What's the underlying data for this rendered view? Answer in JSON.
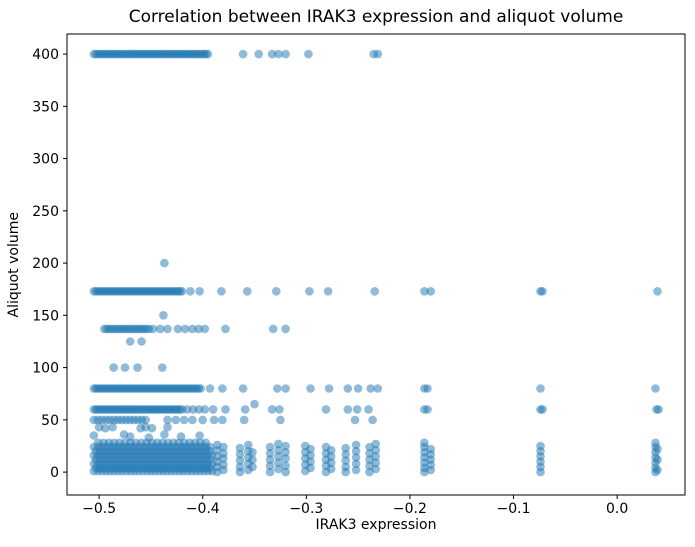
{
  "chart_data": {
    "type": "scatter",
    "title": "Correlation between IRAK3 expression and aliquot volume",
    "xlabel": "IRAK3 expression",
    "ylabel": "Aliquot volume",
    "xlim": [
      -0.531,
      0.0655
    ],
    "ylim": [
      -21.9,
      419.2
    ],
    "xtick_values": [
      -0.5,
      -0.4,
      -0.3,
      -0.2,
      -0.1,
      0.0
    ],
    "xtick_labels": [
      "−0.5",
      "−0.4",
      "−0.3",
      "−0.2",
      "−0.1",
      "0.0"
    ],
    "ytick_values": [
      0,
      50,
      100,
      150,
      200,
      250,
      300,
      350,
      400
    ],
    "ytick_labels": [
      "0",
      "50",
      "100",
      "150",
      "200",
      "250",
      "300",
      "350",
      "400"
    ],
    "grid": false,
    "legend": null,
    "marker": {
      "color": "#1f77b4",
      "opacity": 0.5,
      "radius_px": 4.3
    },
    "dense_runs": [
      {
        "y": 400,
        "x0": -0.505,
        "x1": -0.395,
        "n": 56
      },
      {
        "y": 173,
        "x0": -0.505,
        "x1": -0.42,
        "n": 44
      },
      {
        "y": 137,
        "x0": -0.495,
        "x1": -0.452,
        "n": 19
      },
      {
        "y": 80,
        "x0": -0.505,
        "x1": -0.402,
        "n": 53
      },
      {
        "y": 60,
        "x0": -0.505,
        "x1": -0.42,
        "n": 44
      },
      {
        "y": 60,
        "x0": -0.415,
        "x1": -0.398,
        "n": 4
      },
      {
        "y": 50,
        "x0": -0.505,
        "x1": -0.455,
        "n": 14
      },
      {
        "y": 1,
        "x0": -0.505,
        "x1": -0.391,
        "n": 30
      },
      {
        "y": 4,
        "x0": -0.503,
        "x1": -0.393,
        "n": 29
      },
      {
        "y": 8,
        "x0": -0.505,
        "x1": -0.391,
        "n": 30
      },
      {
        "y": 12,
        "x0": -0.503,
        "x1": -0.393,
        "n": 29
      },
      {
        "y": 16,
        "x0": -0.505,
        "x1": -0.391,
        "n": 30
      },
      {
        "y": 20,
        "x0": -0.503,
        "x1": -0.393,
        "n": 29
      },
      {
        "y": 24,
        "x0": -0.505,
        "x1": -0.393,
        "n": 29
      },
      {
        "y": 28,
        "x0": -0.501,
        "x1": -0.397,
        "n": 21
      }
    ],
    "columns": [
      {
        "x": -0.386,
        "ys": [
          0,
          5,
          10,
          15,
          21,
          26
        ]
      },
      {
        "x": -0.38,
        "ys": [
          2,
          7,
          13,
          18,
          24
        ]
      },
      {
        "x": -0.364,
        "ys": [
          0,
          5,
          11,
          17,
          23
        ]
      },
      {
        "x": -0.356,
        "ys": [
          2,
          8,
          14,
          20,
          26
        ]
      },
      {
        "x": -0.352,
        "ys": [
          5,
          12,
          19
        ]
      },
      {
        "x": -0.335,
        "ys": [
          0,
          6,
          12,
          18,
          24
        ]
      },
      {
        "x": -0.327,
        "ys": [
          3,
          9,
          15,
          21,
          27
        ]
      },
      {
        "x": -0.32,
        "ys": [
          0,
          6,
          13,
          19,
          25
        ]
      },
      {
        "x": -0.301,
        "ys": [
          1,
          7,
          13,
          19,
          25
        ]
      },
      {
        "x": -0.296,
        "ys": [
          4,
          10,
          16,
          22
        ]
      },
      {
        "x": -0.281,
        "ys": [
          0,
          6,
          12,
          18,
          24
        ]
      },
      {
        "x": -0.276,
        "ys": [
          3,
          9,
          15,
          21
        ]
      },
      {
        "x": -0.262,
        "ys": [
          0,
          5,
          11,
          17,
          23
        ]
      },
      {
        "x": -0.252,
        "ys": [
          2,
          8,
          14,
          20,
          26
        ]
      },
      {
        "x": -0.239,
        "ys": [
          0,
          6,
          12,
          18,
          24
        ]
      },
      {
        "x": -0.233,
        "ys": [
          3,
          9,
          15,
          21,
          27
        ]
      },
      {
        "x": -0.186,
        "ys": [
          0,
          4,
          9,
          14,
          19,
          24,
          28
        ]
      },
      {
        "x": -0.18,
        "ys": [
          2,
          7,
          12,
          17,
          22
        ]
      },
      {
        "x": -0.074,
        "ys": [
          0,
          5,
          10,
          15,
          20,
          25
        ]
      },
      {
        "x": 0.037,
        "ys": [
          0,
          4,
          9,
          14,
          19,
          24,
          28
        ]
      },
      {
        "x": 0.039,
        "ys": [
          2,
          12,
          22
        ]
      }
    ],
    "points": [
      [
        -0.361,
        400
      ],
      [
        -0.346,
        400
      ],
      [
        -0.333,
        400
      ],
      [
        -0.327,
        400
      ],
      [
        -0.32,
        400
      ],
      [
        -0.298,
        400
      ],
      [
        -0.235,
        400
      ],
      [
        -0.231,
        400
      ],
      [
        -0.437,
        200
      ],
      [
        -0.412,
        173
      ],
      [
        -0.403,
        173
      ],
      [
        -0.382,
        173
      ],
      [
        -0.357,
        173
      ],
      [
        -0.329,
        173
      ],
      [
        -0.297,
        173
      ],
      [
        -0.279,
        173
      ],
      [
        -0.234,
        173
      ],
      [
        -0.186,
        173
      ],
      [
        -0.18,
        173
      ],
      [
        -0.074,
        173
      ],
      [
        -0.072,
        173
      ],
      [
        0.039,
        173
      ],
      [
        -0.438,
        150
      ],
      [
        -0.448,
        137
      ],
      [
        -0.441,
        137
      ],
      [
        -0.434,
        137
      ],
      [
        -0.424,
        137
      ],
      [
        -0.417,
        137
      ],
      [
        -0.41,
        137
      ],
      [
        -0.404,
        137
      ],
      [
        -0.398,
        137
      ],
      [
        -0.378,
        137
      ],
      [
        -0.332,
        137
      ],
      [
        -0.32,
        137
      ],
      [
        -0.47,
        125
      ],
      [
        -0.459,
        125
      ],
      [
        -0.486,
        100
      ],
      [
        -0.475,
        100
      ],
      [
        -0.463,
        100
      ],
      [
        -0.439,
        100
      ],
      [
        -0.393,
        80
      ],
      [
        -0.381,
        80
      ],
      [
        -0.361,
        80
      ],
      [
        -0.328,
        80
      ],
      [
        -0.32,
        80
      ],
      [
        -0.296,
        80
      ],
      [
        -0.278,
        80
      ],
      [
        -0.26,
        80
      ],
      [
        -0.25,
        80
      ],
      [
        -0.238,
        80
      ],
      [
        -0.231,
        80
      ],
      [
        -0.186,
        80
      ],
      [
        -0.183,
        80
      ],
      [
        -0.074,
        80
      ],
      [
        0.037,
        80
      ],
      [
        -0.35,
        65
      ],
      [
        -0.39,
        60
      ],
      [
        -0.378,
        60
      ],
      [
        -0.359,
        60
      ],
      [
        -0.333,
        60
      ],
      [
        -0.326,
        60
      ],
      [
        -0.281,
        60
      ],
      [
        -0.26,
        60
      ],
      [
        -0.251,
        60
      ],
      [
        -0.24,
        60
      ],
      [
        -0.186,
        60
      ],
      [
        -0.183,
        60
      ],
      [
        -0.074,
        60
      ],
      [
        -0.072,
        60
      ],
      [
        0.038,
        60
      ],
      [
        0.04,
        60
      ],
      [
        -0.434,
        50
      ],
      [
        -0.426,
        50
      ],
      [
        -0.418,
        50
      ],
      [
        -0.41,
        50
      ],
      [
        -0.4,
        50
      ],
      [
        -0.389,
        50
      ],
      [
        -0.381,
        50
      ],
      [
        -0.36,
        50
      ],
      [
        -0.325,
        50
      ],
      [
        -0.253,
        50
      ],
      [
        -0.236,
        50
      ],
      [
        -0.5,
        43
      ],
      [
        -0.494,
        42
      ],
      [
        -0.487,
        43
      ],
      [
        -0.46,
        42
      ],
      [
        -0.455,
        43
      ],
      [
        -0.449,
        42
      ],
      [
        -0.434,
        43
      ],
      [
        -0.505,
        35
      ],
      [
        -0.476,
        36
      ],
      [
        -0.47,
        34
      ],
      [
        -0.452,
        33
      ],
      [
        -0.437,
        36
      ],
      [
        -0.421,
        34
      ],
      [
        -0.403,
        35
      ]
    ]
  },
  "figure": {
    "background": "#ffffff",
    "spine_color": "#000000",
    "tick_color": "#000000"
  }
}
